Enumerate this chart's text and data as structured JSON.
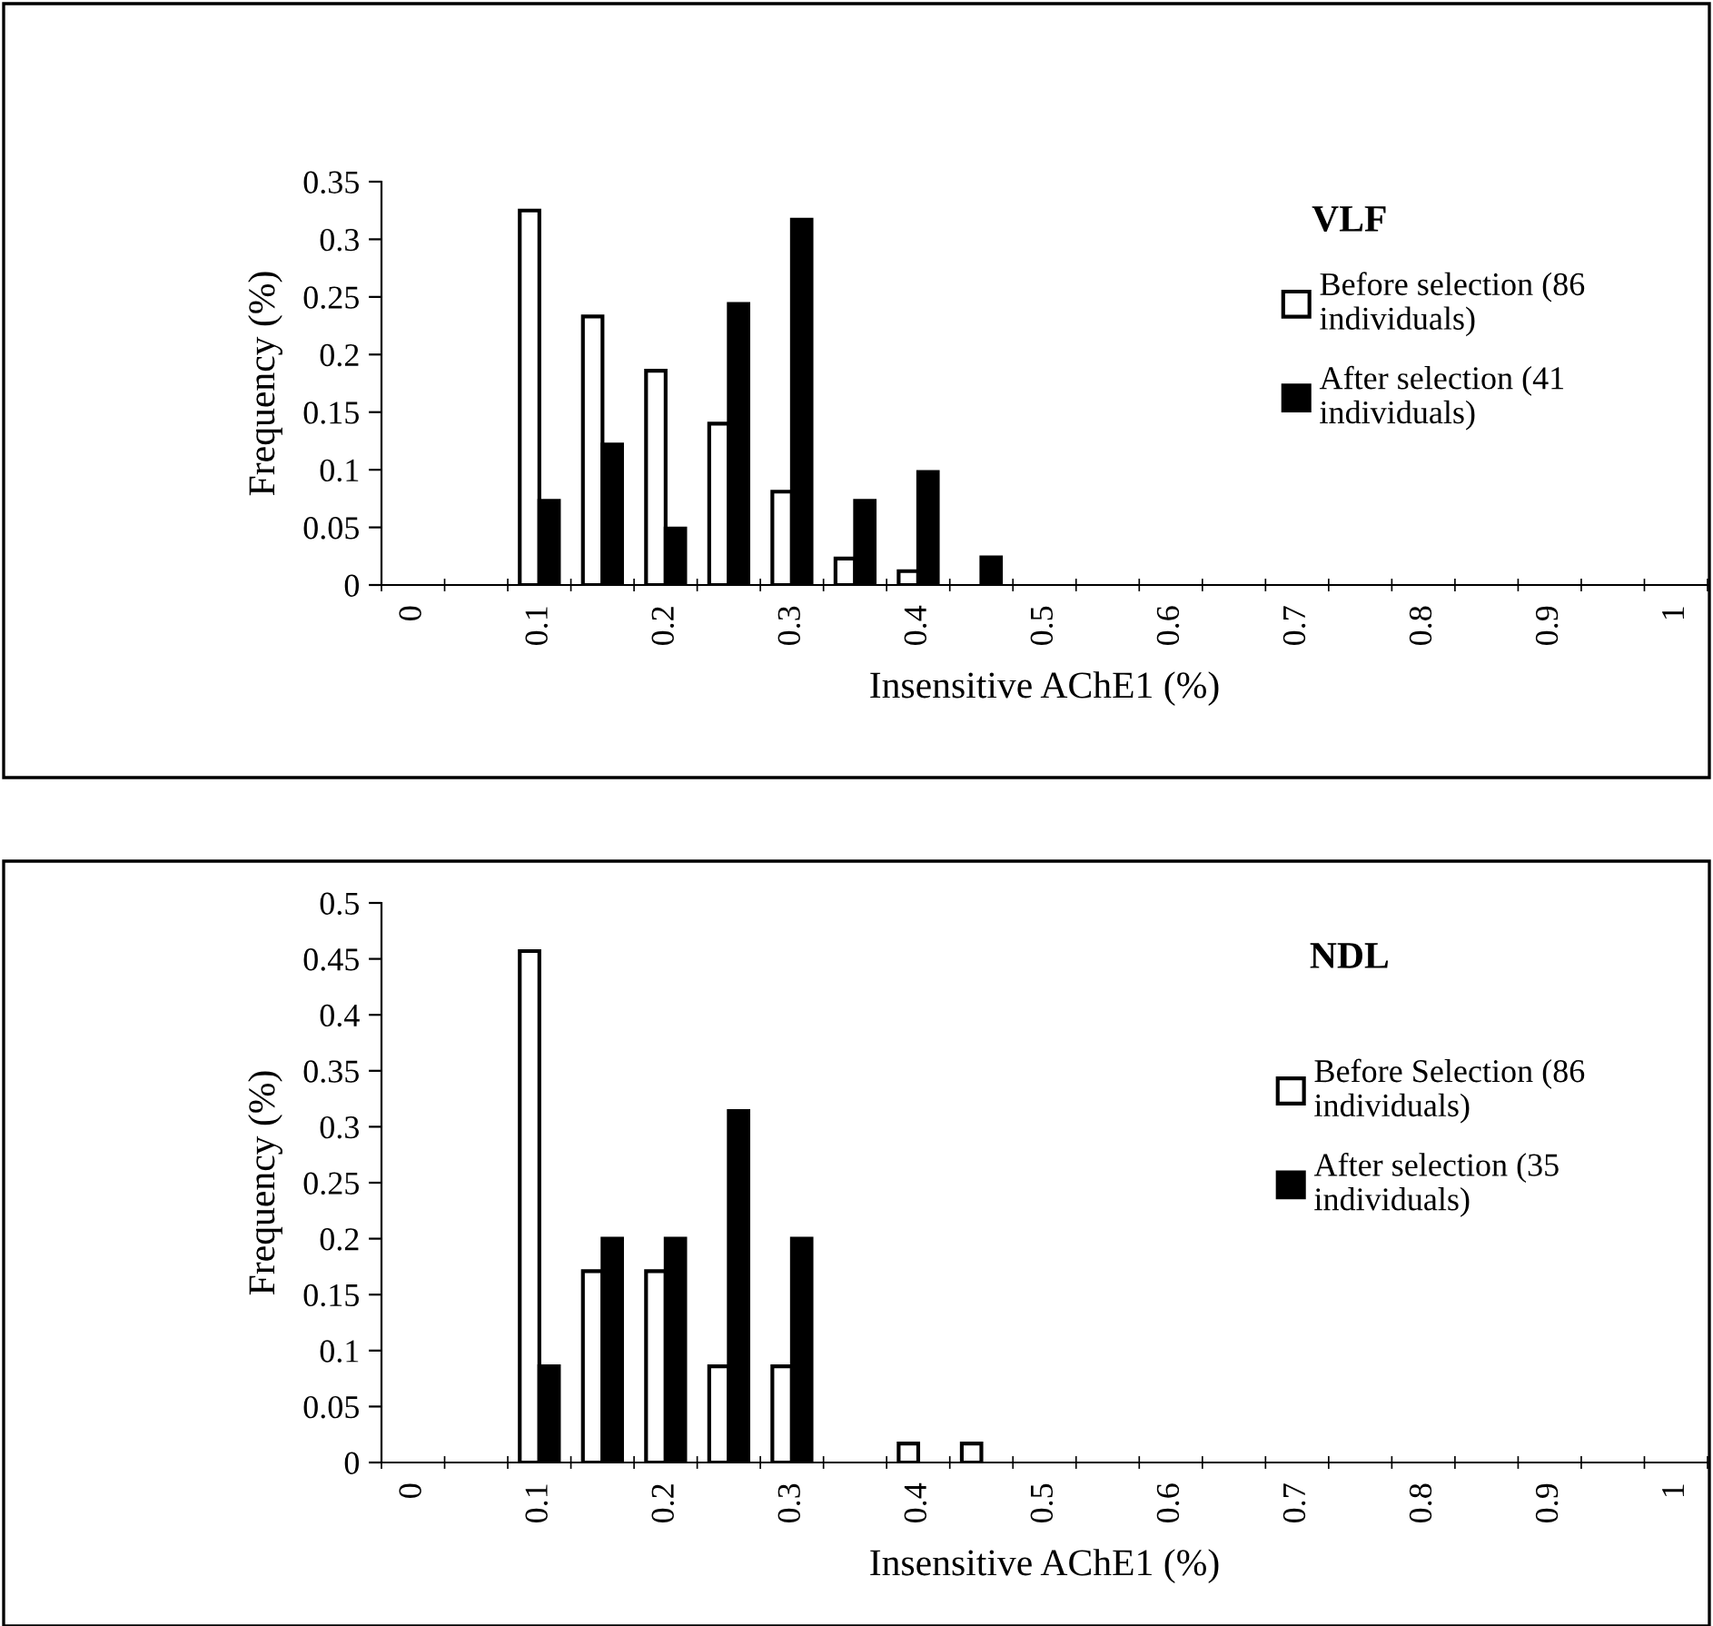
{
  "chart_data": [
    {
      "type": "bar",
      "title": "VLF",
      "xlabel": "Insensitive AChE1 (%)",
      "ylabel": "Frequency (%)",
      "categories": [
        "0",
        null,
        "0.1",
        null,
        "0.2",
        null,
        "0.3",
        null,
        "0.4",
        null,
        "0.5",
        null,
        "0.6",
        null,
        "0.7",
        null,
        "0.8",
        null,
        "0.9",
        null,
        "1"
      ],
      "series": [
        {
          "name": "Before selection (86\nindividuals)",
          "color": "#ffffff",
          "values": [
            0,
            0,
            0.325,
            0.233,
            0.186,
            0.14,
            0.081,
            0.023,
            0.012,
            0,
            0,
            0,
            0,
            0,
            0,
            0,
            0,
            0,
            0,
            0,
            0
          ]
        },
        {
          "name": "After selection (41\nindividuals)",
          "color": "#000000",
          "values": [
            0,
            0,
            0.073,
            0.122,
            0.049,
            0.244,
            0.317,
            0.073,
            0.098,
            0.024,
            0,
            0,
            0,
            0,
            0,
            0,
            0,
            0,
            0,
            0,
            0
          ]
        }
      ],
      "ylim": [
        0,
        0.35
      ],
      "yticks": [
        0,
        0.05,
        0.1,
        0.15,
        0.2,
        0.25,
        0.3,
        0.35
      ],
      "legend": "right",
      "grid": false
    },
    {
      "type": "bar",
      "title": "NDL",
      "xlabel": "Insensitive AChE1 (%)",
      "ylabel": "Frequency (%)",
      "categories": [
        "0",
        null,
        "0.1",
        null,
        "0.2",
        null,
        "0.3",
        null,
        "0.4",
        null,
        "0.5",
        null,
        "0.6",
        null,
        "0.7",
        null,
        "0.8",
        null,
        "0.9",
        null,
        "1"
      ],
      "series": [
        {
          "name": "Before Selection (86\nindividuals)",
          "color": "#ffffff",
          "values": [
            0,
            0,
            0.457,
            0.171,
            0.171,
            0.086,
            0.086,
            0,
            0.017,
            0.017,
            0,
            0,
            0,
            0,
            0,
            0,
            0,
            0,
            0,
            0,
            0
          ]
        },
        {
          "name": "After selection (35\nindividuals)",
          "color": "#000000",
          "values": [
            0,
            0,
            0.086,
            0.2,
            0.2,
            0.314,
            0.2,
            0,
            0,
            0,
            0,
            0,
            0,
            0,
            0,
            0,
            0,
            0,
            0,
            0,
            0
          ]
        }
      ],
      "ylim": [
        0,
        0.5
      ],
      "yticks": [
        0,
        0.05,
        0.1,
        0.15,
        0.2,
        0.25,
        0.3,
        0.35,
        0.4,
        0.45,
        0.5
      ],
      "legend": "right",
      "grid": false
    }
  ]
}
